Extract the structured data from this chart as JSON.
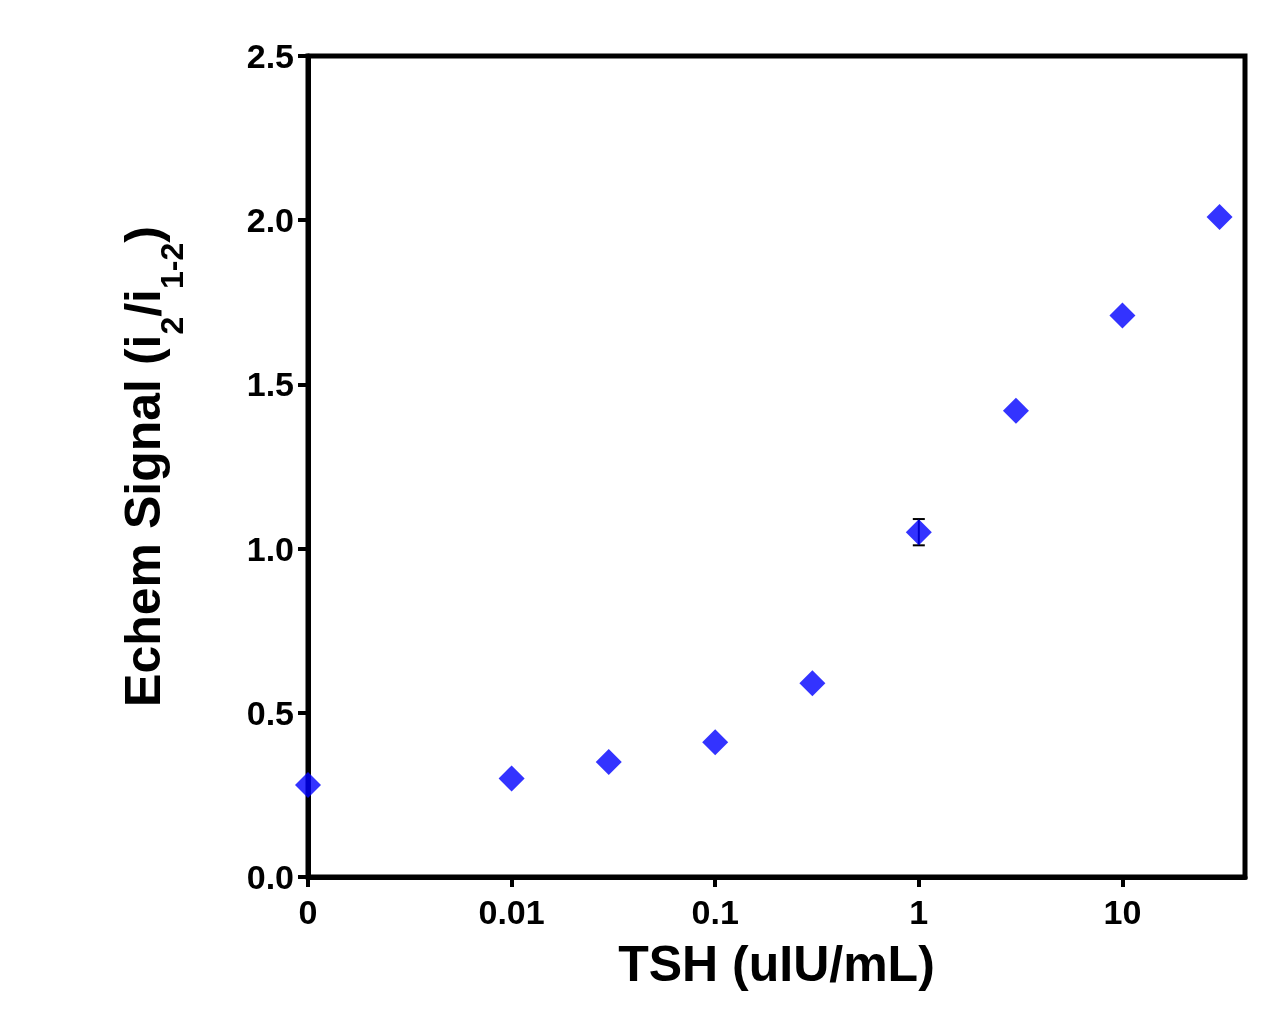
{
  "chart_data": {
    "type": "scatter",
    "xlabel": "TSH (uIU/mL)",
    "ylabel": "Echem Signal (i$_{2}$/i$_{1-2}$)",
    "log": "x",
    "marker": "diamond",
    "grid": false,
    "x": [
      0.001,
      0.01,
      0.03,
      0.1,
      0.3,
      1,
      3,
      10,
      30
    ],
    "series": [
      {
        "color": "#0000ff",
        "values": [
          0.28,
          0.3,
          0.35,
          0.41,
          0.59,
          1.05,
          1.42,
          1.71,
          2.01
        ],
        "errors": [
          null,
          null,
          null,
          null,
          null,
          0.04,
          null,
          null,
          null
        ]
      }
    ],
    "xlim": [
      0.001,
      40
    ],
    "xticks": [
      {
        "value": 0.001,
        "label": "0"
      },
      0.01,
      0.1,
      1,
      10
    ],
    "ylim": [
      0,
      2.5
    ],
    "yticks": [
      {
        "value": 0,
        "label": "0.0"
      },
      {
        "value": 0.5,
        "label": "0.5"
      },
      {
        "value": 1,
        "label": "1.0"
      },
      {
        "value": 1.5,
        "label": "1.5"
      },
      {
        "value": 2,
        "label": "2.0"
      },
      {
        "value": 2.5,
        "label": "2.5"
      }
    ]
  }
}
